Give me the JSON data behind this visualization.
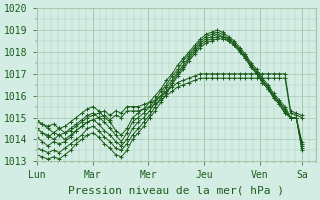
{
  "xlabel": "Pression niveau de la mer( hPa )",
  "bg_color": "#d4ede4",
  "plot_bg_color": "#d4ede4",
  "grid_color": "#a8c8b0",
  "line_color": "#1a5c1a",
  "ylim": [
    1013,
    1020
  ],
  "xlim": [
    0,
    120
  ],
  "day_labels": [
    "Lun",
    "Mar",
    "Mer",
    "Jeu",
    "Ven",
    "Sa"
  ],
  "day_positions": [
    0,
    24,
    48,
    72,
    96,
    114
  ],
  "series": [
    [
      1014.8,
      1014.7,
      1014.5,
      1014.3,
      1014.5,
      1014.3,
      1014.4,
      1014.6,
      1014.8,
      1015.0,
      1015.1,
      1015.2,
      1015.3,
      1015.1,
      1015.3,
      1015.2,
      1015.5,
      1015.5,
      1015.5,
      1015.6,
      1015.7,
      1015.8,
      1016.0,
      1016.2,
      1016.4,
      1016.6,
      1016.7,
      1016.8,
      1016.9,
      1017.0,
      1017.0,
      1017.0,
      1017.0,
      1017.0,
      1017.0,
      1017.0,
      1017.0,
      1017.0,
      1017.0,
      1017.0,
      1017.0,
      1017.0,
      1017.0,
      1017.0,
      1017.0,
      1015.3,
      1015.2,
      1015.1
    ],
    [
      1014.5,
      1014.3,
      1014.2,
      1014.0,
      1014.2,
      1014.0,
      1014.2,
      1014.4,
      1014.6,
      1014.8,
      1014.9,
      1015.0,
      1015.1,
      1014.9,
      1015.1,
      1015.0,
      1015.3,
      1015.3,
      1015.3,
      1015.4,
      1015.5,
      1015.6,
      1015.8,
      1016.0,
      1016.2,
      1016.4,
      1016.5,
      1016.6,
      1016.7,
      1016.8,
      1016.8,
      1016.8,
      1016.8,
      1016.8,
      1016.8,
      1016.8,
      1016.8,
      1016.8,
      1016.8,
      1016.8,
      1016.8,
      1016.8,
      1016.8,
      1016.8,
      1016.8,
      1015.2,
      1015.1,
      1015.0
    ],
    [
      1014.9,
      1014.7,
      1014.6,
      1014.7,
      1014.5,
      1014.6,
      1014.8,
      1015.0,
      1015.2,
      1015.4,
      1015.5,
      1015.3,
      1015.0,
      1014.8,
      1014.4,
      1014.2,
      1014.5,
      1015.0,
      1015.2,
      1015.4,
      1015.7,
      1016.0,
      1016.3,
      1016.7,
      1017.0,
      1017.4,
      1017.7,
      1018.0,
      1018.3,
      1018.6,
      1018.8,
      1018.9,
      1019.0,
      1018.9,
      1018.7,
      1018.5,
      1018.2,
      1017.9,
      1017.5,
      1017.2,
      1016.8,
      1016.5,
      1016.1,
      1015.8,
      1015.5,
      1015.0,
      1015.0,
      1013.9
    ],
    [
      1014.5,
      1014.3,
      1014.1,
      1014.3,
      1014.2,
      1014.3,
      1014.5,
      1014.7,
      1014.9,
      1015.1,
      1015.2,
      1015.0,
      1014.8,
      1014.5,
      1014.2,
      1013.9,
      1014.3,
      1014.8,
      1015.0,
      1015.2,
      1015.5,
      1015.8,
      1016.2,
      1016.5,
      1016.9,
      1017.2,
      1017.6,
      1017.9,
      1018.2,
      1018.5,
      1018.7,
      1018.8,
      1018.9,
      1018.8,
      1018.6,
      1018.4,
      1018.1,
      1017.8,
      1017.4,
      1017.1,
      1016.7,
      1016.4,
      1016.0,
      1015.7,
      1015.4,
      1015.0,
      1015.0,
      1013.8
    ],
    [
      1014.1,
      1013.9,
      1013.7,
      1013.9,
      1013.8,
      1013.9,
      1014.1,
      1014.4,
      1014.6,
      1014.8,
      1014.9,
      1014.7,
      1014.4,
      1014.2,
      1013.9,
      1013.7,
      1014.0,
      1014.5,
      1014.8,
      1015.0,
      1015.3,
      1015.7,
      1016.0,
      1016.4,
      1016.7,
      1017.1,
      1017.4,
      1017.8,
      1018.1,
      1018.4,
      1018.6,
      1018.7,
      1018.8,
      1018.7,
      1018.5,
      1018.3,
      1018.0,
      1017.7,
      1017.3,
      1017.0,
      1016.6,
      1016.3,
      1015.9,
      1015.6,
      1015.2,
      1015.0,
      1015.0,
      1013.7
    ],
    [
      1013.6,
      1013.5,
      1013.4,
      1013.5,
      1013.4,
      1013.6,
      1013.8,
      1014.0,
      1014.2,
      1014.5,
      1014.6,
      1014.4,
      1014.1,
      1013.9,
      1013.6,
      1013.5,
      1013.8,
      1014.2,
      1014.5,
      1014.8,
      1015.1,
      1015.5,
      1015.9,
      1016.2,
      1016.6,
      1017.0,
      1017.3,
      1017.7,
      1018.0,
      1018.3,
      1018.5,
      1018.6,
      1018.7,
      1018.7,
      1018.6,
      1018.4,
      1018.1,
      1017.8,
      1017.4,
      1017.1,
      1016.7,
      1016.4,
      1016.0,
      1015.7,
      1015.3,
      1015.0,
      1015.0,
      1013.6
    ],
    [
      1013.3,
      1013.2,
      1013.1,
      1013.2,
      1013.1,
      1013.3,
      1013.5,
      1013.8,
      1014.0,
      1014.2,
      1014.3,
      1014.1,
      1013.8,
      1013.6,
      1013.3,
      1013.2,
      1013.5,
      1014.0,
      1014.3,
      1014.6,
      1015.0,
      1015.3,
      1015.7,
      1016.1,
      1016.5,
      1016.9,
      1017.2,
      1017.6,
      1017.9,
      1018.2,
      1018.4,
      1018.5,
      1018.6,
      1018.6,
      1018.5,
      1018.3,
      1018.0,
      1017.7,
      1017.3,
      1017.0,
      1016.6,
      1016.3,
      1015.9,
      1015.6,
      1015.2,
      1015.0,
      1015.0,
      1013.5
    ]
  ],
  "marker": "+",
  "marker_size": 3,
  "line_width": 0.7,
  "font_color": "#1a5c1a",
  "tick_label_size": 7,
  "xlabel_size": 8
}
